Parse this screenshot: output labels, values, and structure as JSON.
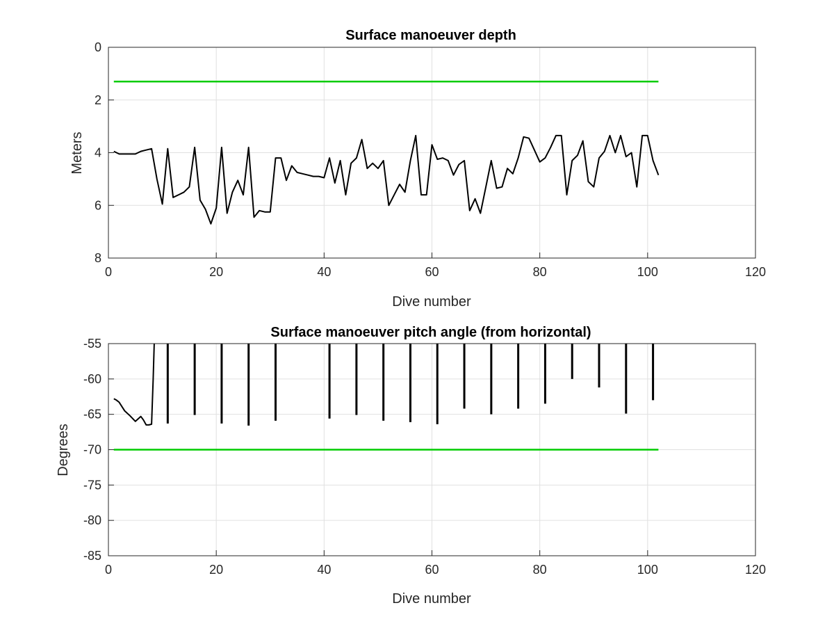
{
  "colors": {
    "data": "#000000",
    "threshold": "#00cc00",
    "grid": "#e0e0e0",
    "axes": "#262626"
  },
  "chart_data": [
    {
      "type": "line",
      "title": "Surface manoeuver depth",
      "xlabel": "Dive number",
      "ylabel": "Meters",
      "xlim": [
        0,
        120
      ],
      "ylim": [
        0,
        8
      ],
      "y_reversed": true,
      "grid": true,
      "xticks": [
        0,
        20,
        40,
        60,
        80,
        100,
        120
      ],
      "yticks": [
        0,
        2,
        4,
        6,
        8
      ],
      "series": [
        {
          "role": "data",
          "x": [
            1,
            2,
            3,
            4,
            5,
            6,
            7,
            8,
            9,
            10,
            11,
            12,
            13,
            14,
            15,
            16,
            17,
            18,
            19,
            20,
            21,
            22,
            23,
            24,
            25,
            26,
            27,
            28,
            29,
            30,
            31,
            32,
            33,
            34,
            35,
            36,
            37,
            38,
            39,
            40,
            41,
            42,
            43,
            44,
            45,
            46,
            47,
            48,
            49,
            50,
            51,
            52,
            53,
            54,
            55,
            56,
            57,
            58,
            59,
            60,
            61,
            62,
            63,
            64,
            65,
            66,
            67,
            68,
            69,
            70,
            71,
            72,
            73,
            74,
            75,
            76,
            77,
            78,
            79,
            80,
            81,
            82,
            83,
            84,
            85,
            86,
            87,
            88,
            89,
            90,
            91,
            92,
            93,
            94,
            95,
            96,
            97,
            98,
            99,
            100,
            101,
            102
          ],
          "y": [
            3.95,
            4.05,
            4.05,
            4.05,
            4.05,
            3.95,
            3.9,
            3.85,
            5.0,
            5.95,
            3.85,
            5.7,
            5.6,
            5.5,
            5.3,
            3.8,
            5.8,
            6.15,
            6.7,
            6.1,
            3.8,
            6.3,
            5.5,
            5.05,
            5.6,
            3.8,
            6.45,
            6.2,
            6.25,
            6.25,
            4.2,
            4.2,
            5.05,
            4.5,
            4.75,
            4.8,
            4.85,
            4.9,
            4.9,
            4.95,
            4.2,
            5.15,
            4.3,
            5.6,
            4.4,
            4.2,
            3.5,
            4.6,
            4.4,
            4.6,
            4.3,
            6.0,
            5.6,
            5.2,
            5.5,
            4.3,
            3.35,
            5.6,
            5.6,
            3.7,
            4.25,
            4.2,
            4.3,
            4.85,
            4.45,
            4.3,
            6.2,
            5.75,
            6.3,
            5.3,
            4.3,
            5.35,
            5.3,
            4.6,
            4.8,
            4.2,
            3.4,
            3.45,
            3.9,
            4.35,
            4.2,
            3.8,
            3.35,
            3.35,
            5.6,
            4.3,
            4.1,
            3.55,
            5.1,
            5.3,
            4.2,
            3.95,
            3.35,
            4.0,
            3.35,
            4.15,
            4.0,
            5.3,
            3.35,
            3.35,
            4.3,
            4.85
          ]
        },
        {
          "role": "threshold",
          "x": [
            1,
            102
          ],
          "y": [
            1.3,
            1.3
          ]
        }
      ]
    },
    {
      "type": "line",
      "title": "Surface manoeuver pitch angle (from horizontal)",
      "xlabel": "Dive number",
      "ylabel": "Degrees",
      "xlim": [
        0,
        120
      ],
      "ylim": [
        -85,
        -55
      ],
      "grid": true,
      "xticks": [
        0,
        20,
        40,
        60,
        80,
        100,
        120
      ],
      "yticks": [
        -55,
        -60,
        -65,
        -70,
        -75,
        -80,
        -85
      ],
      "series": [
        {
          "role": "data",
          "x": [
            1,
            1.5,
            2,
            3,
            4,
            5,
            6,
            6.5,
            7,
            7.5,
            8,
            8.3,
            8.5
          ],
          "y": [
            -62.8,
            -63.0,
            -63.3,
            -64.5,
            -65.2,
            -66.0,
            -65.3,
            -65.8,
            -66.5,
            -66.5,
            -66.4,
            -60.0,
            -55.0
          ]
        },
        {
          "role": "spikes",
          "x": [
            11,
            16,
            21,
            26,
            31,
            41,
            46,
            51,
            56,
            61,
            66,
            71,
            76,
            81,
            86,
            91,
            96,
            101
          ],
          "y": [
            -66.3,
            -65.1,
            -66.3,
            -66.6,
            -65.9,
            -65.6,
            -65.1,
            -65.9,
            -66.1,
            -66.4,
            -64.2,
            -65.0,
            -64.2,
            -63.5,
            -60.0,
            -61.2,
            -64.9,
            -63.0
          ]
        },
        {
          "role": "threshold",
          "x": [
            1,
            102
          ],
          "y": [
            -70,
            -70
          ]
        }
      ]
    }
  ]
}
